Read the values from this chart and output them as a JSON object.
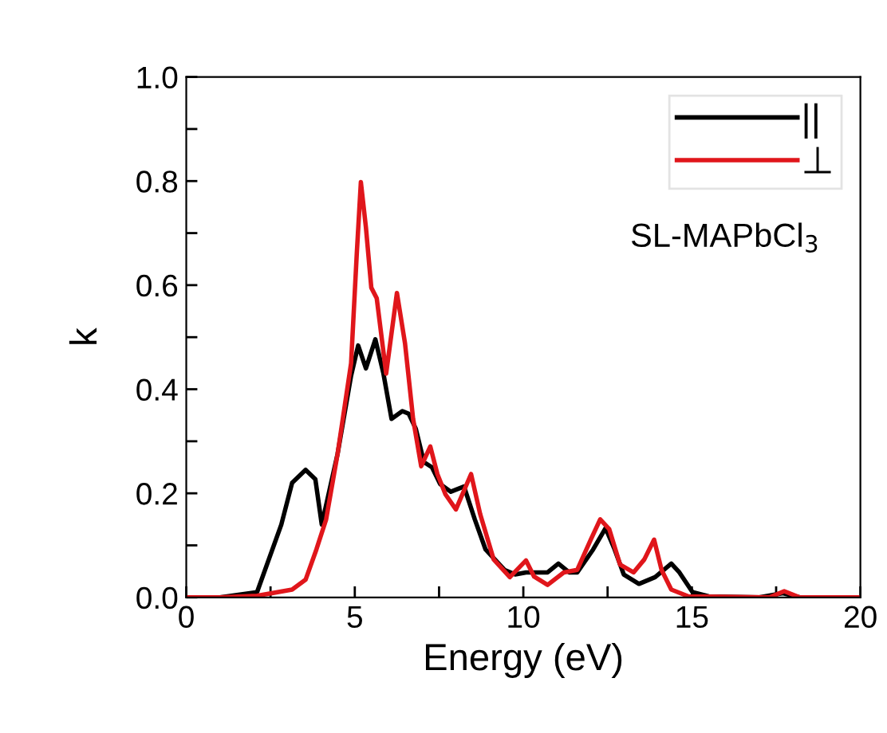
{
  "chart_data": {
    "type": "line",
    "xlabel": "Energy (eV)",
    "ylabel": "k",
    "annotations": [
      "SL-MAPbCl$_{3}$"
    ],
    "xlim": [
      0,
      20
    ],
    "ylim": [
      0,
      1.0
    ],
    "xticks": [
      0,
      {
        "value": 2.5,
        "label": null
      },
      5,
      {
        "value": 7.5,
        "label": null
      },
      10,
      {
        "value": 12.5,
        "label": null
      },
      15,
      {
        "value": 17.5,
        "label": null
      },
      20
    ],
    "yticks": [
      {
        "value": 0,
        "label": "0.0"
      },
      {
        "value": 0.1,
        "label": null
      },
      0.2,
      {
        "value": 0.3,
        "label": null
      },
      0.4,
      {
        "value": 0.5,
        "label": null
      },
      0.6,
      {
        "value": 0.7,
        "label": null
      },
      0.8,
      {
        "value": 0.9,
        "label": null
      },
      {
        "value": 1.0,
        "label": "1.0"
      }
    ],
    "grid": false,
    "legend": "top right",
    "marker": "none",
    "line_style": "solid",
    "series": [
      {
        "name": "||",
        "color": "#000000",
        "x": [
          0,
          1,
          2.1,
          2.82,
          3.14,
          3.54,
          3.83,
          4.02,
          4.49,
          4.89,
          5.1,
          5.33,
          5.61,
          5.85,
          6.09,
          6.41,
          6.6,
          6.81,
          7.05,
          7.29,
          7.53,
          7.85,
          8.24,
          8.56,
          8.88,
          9.44,
          9.76,
          10.08,
          10.72,
          11.04,
          11.36,
          11.6,
          12.07,
          12.44,
          12.71,
          12.98,
          13.43,
          13.91,
          14.39,
          14.63,
          15.02,
          15.5,
          17.0,
          17.7,
          18.2,
          20
        ],
        "values": [
          0,
          0,
          0.01,
          0.14,
          0.22,
          0.245,
          0.227,
          0.14,
          0.276,
          0.426,
          0.484,
          0.44,
          0.496,
          0.43,
          0.343,
          0.358,
          0.353,
          0.324,
          0.26,
          0.25,
          0.218,
          0.203,
          0.213,
          0.15,
          0.092,
          0.053,
          0.044,
          0.048,
          0.048,
          0.065,
          0.048,
          0.048,
          0.092,
          0.133,
          0.092,
          0.044,
          0.026,
          0.039,
          0.065,
          0.048,
          0.01,
          0.002,
          0,
          0.008,
          0,
          0
        ]
      },
      {
        "name": "⊥",
        "color": "#e0161b",
        "x": [
          0,
          1,
          2.1,
          3.14,
          3.54,
          3.86,
          4.15,
          4.49,
          4.89,
          5.06,
          5.18,
          5.33,
          5.49,
          5.65,
          5.93,
          6.25,
          6.49,
          6.73,
          6.97,
          7.24,
          7.45,
          7.69,
          8.0,
          8.45,
          8.72,
          9.12,
          9.6,
          10.08,
          10.32,
          10.72,
          11.2,
          11.6,
          12.0,
          12.28,
          12.55,
          12.87,
          13.27,
          13.59,
          13.88,
          14.1,
          14.39,
          14.9,
          17.3,
          17.74,
          18.2,
          20
        ],
        "values": [
          0,
          0,
          0.003,
          0.015,
          0.034,
          0.092,
          0.15,
          0.276,
          0.45,
          0.662,
          0.798,
          0.711,
          0.595,
          0.575,
          0.43,
          0.585,
          0.488,
          0.343,
          0.252,
          0.29,
          0.237,
          0.198,
          0.169,
          0.237,
          0.16,
          0.073,
          0.039,
          0.071,
          0.04,
          0.024,
          0.048,
          0.053,
          0.111,
          0.15,
          0.131,
          0.063,
          0.048,
          0.073,
          0.111,
          0.053,
          0.015,
          0.002,
          0,
          0.012,
          0,
          0
        ]
      }
    ]
  }
}
